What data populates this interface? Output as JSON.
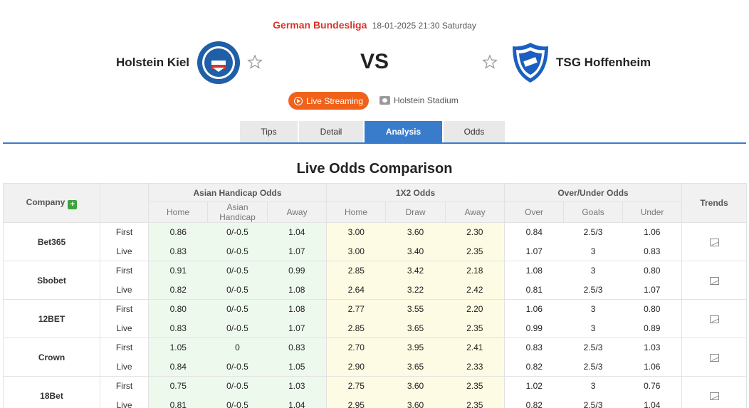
{
  "match": {
    "league": "German Bundesliga",
    "datetime": "18-01-2025 21:30 Saturday",
    "home_team": "Holstein Kiel",
    "away_team": "TSG Hoffenheim",
    "vs": "VS",
    "live_label": "Live Streaming",
    "stadium": "Holstein Stadium"
  },
  "tabs": [
    {
      "label": "Tips"
    },
    {
      "label": "Detail"
    },
    {
      "label": "Analysis",
      "active": true
    },
    {
      "label": "Odds"
    }
  ],
  "section_title": "Live Odds Comparison",
  "table": {
    "company_header": "Company",
    "asian_header": "Asian Handicap Odds",
    "x12_header": "1X2 Odds",
    "ou_header": "Over/Under Odds",
    "trends_header": "Trends",
    "sub": {
      "asian": [
        "Home",
        "Asian Handicap",
        "Away"
      ],
      "x12": [
        "Home",
        "Draw",
        "Away"
      ],
      "ou": [
        "Over",
        "Goals",
        "Under"
      ]
    },
    "rows": [
      {
        "company": "Bet365",
        "first": {
          "kind": "First",
          "ah": [
            "0.86",
            "0/-0.5",
            "1.04"
          ],
          "x12": [
            "3.00",
            "3.60",
            "2.30"
          ],
          "ou": [
            "0.84",
            "2.5/3",
            "1.06"
          ]
        },
        "live": {
          "kind": "Live",
          "ah": [
            "0.83",
            "0/-0.5",
            "1.07"
          ],
          "x12": [
            "3.00",
            "3.40",
            "2.35"
          ],
          "ou": [
            "1.07",
            "3",
            "0.83"
          ]
        }
      },
      {
        "company": "Sbobet",
        "first": {
          "kind": "First",
          "ah": [
            "0.91",
            "0/-0.5",
            "0.99"
          ],
          "x12": [
            "2.85",
            "3.42",
            "2.18"
          ],
          "ou": [
            "1.08",
            "3",
            "0.80"
          ]
        },
        "live": {
          "kind": "Live",
          "ah": [
            "0.82",
            "0/-0.5",
            "1.08"
          ],
          "x12": [
            "2.64",
            "3.22",
            "2.42"
          ],
          "ou": [
            "0.81",
            "2.5/3",
            "1.07"
          ]
        }
      },
      {
        "company": "12BET",
        "first": {
          "kind": "First",
          "ah": [
            "0.80",
            "0/-0.5",
            "1.08"
          ],
          "x12": [
            "2.77",
            "3.55",
            "2.20"
          ],
          "ou": [
            "1.06",
            "3",
            "0.80"
          ]
        },
        "live": {
          "kind": "Live",
          "ah": [
            "0.83",
            "0/-0.5",
            "1.07"
          ],
          "x12": [
            "2.85",
            "3.65",
            "2.35"
          ],
          "ou": [
            "0.99",
            "3",
            "0.89"
          ]
        }
      },
      {
        "company": "Crown",
        "first": {
          "kind": "First",
          "ah": [
            "1.05",
            "0",
            "0.83"
          ],
          "x12": [
            "2.70",
            "3.95",
            "2.41"
          ],
          "ou": [
            "0.83",
            "2.5/3",
            "1.03"
          ]
        },
        "live": {
          "kind": "Live",
          "ah": [
            "0.84",
            "0/-0.5",
            "1.05"
          ],
          "x12": [
            "2.90",
            "3.65",
            "2.33"
          ],
          "ou": [
            "0.82",
            "2.5/3",
            "1.06"
          ]
        }
      },
      {
        "company": "18Bet",
        "first": {
          "kind": "First",
          "ah": [
            "0.75",
            "0/-0.5",
            "1.03"
          ],
          "x12": [
            "2.75",
            "3.60",
            "2.35"
          ],
          "ou": [
            "1.02",
            "3",
            "0.76"
          ]
        },
        "live": {
          "kind": "Live",
          "ah": [
            "0.81",
            "0/-0.5",
            "1.04"
          ],
          "x12": [
            "2.95",
            "3.60",
            "2.35"
          ],
          "ou": [
            "0.82",
            "2.5/3",
            "1.04"
          ]
        }
      }
    ]
  },
  "colors": {
    "league": "#d9342b",
    "live_button": "#f0621a",
    "tab_active": "#3a7ccc",
    "asian_bg": "#eef9ee",
    "x12_bg": "#fdfbe3"
  },
  "icons": {
    "home_logo": "holstein-kiel-crest",
    "away_logo": "hoffenheim-crest",
    "star": "star-outline-icon",
    "play": "play-circle-icon",
    "stadium": "stadium-icon",
    "add": "plus-icon",
    "trend": "trend-chart-icon"
  }
}
